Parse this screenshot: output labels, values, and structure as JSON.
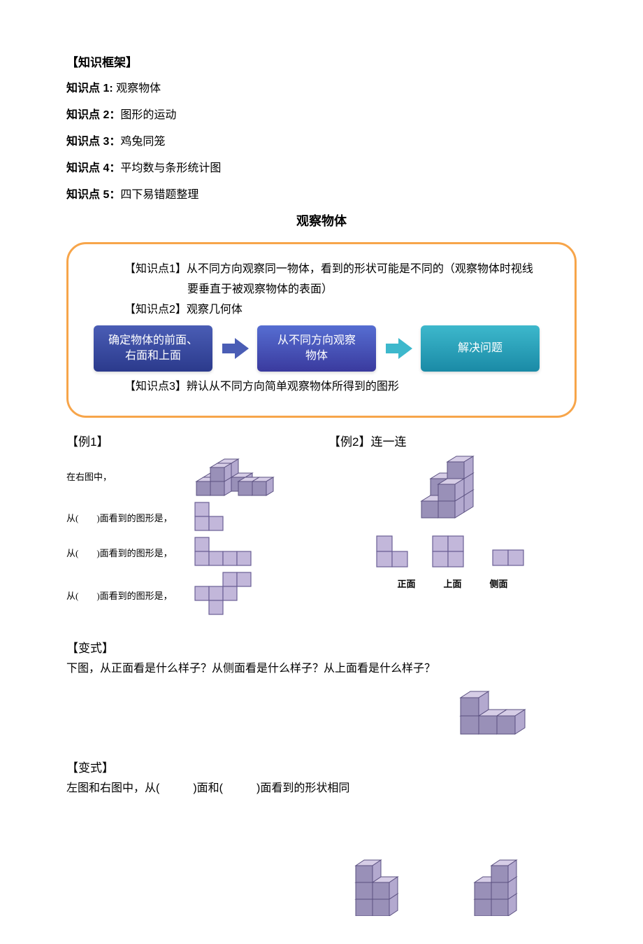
{
  "header": {
    "framework_title": "【知识框架】",
    "points": [
      {
        "num": "知识点 1:",
        "text": "观察物体"
      },
      {
        "num": "知识点 2：",
        "text": "图形的运动"
      },
      {
        "num": "知识点 3：",
        "text": "鸡兔同笼"
      },
      {
        "num": "知识点 4：",
        "text": "平均数与条形统计图"
      },
      {
        "num": "知识点 5：",
        "text": "四下易错题整理"
      }
    ],
    "center_title": "观察物体"
  },
  "orange_box": {
    "border_color": "#f7a54a",
    "lines": {
      "l1a": "【知识点1】从不同方向观察同一物体，看到的形状可能是不同的（观察物体时视线",
      "l1b": "要垂直于被观察物体的表面）",
      "l2": "【知识点2】观察几何体",
      "l3": "【知识点3】辨认从不同方向简单观察物体所得到的图形"
    },
    "flow": {
      "box1": "确定物体的前面、\n右面和上面",
      "box2": "从不同方向观察\n物体",
      "box3": "解决问题",
      "colors": {
        "b1": "#3546a0",
        "b2": "#4650b8",
        "b3": "#259fb9",
        "arrow1": "#4a5db5",
        "arrow2": "#3db8cc"
      }
    }
  },
  "examples": {
    "ex1": {
      "title": "【例1】",
      "intro": "在右图中，",
      "rows": [
        "从(　　)面看到的图形是，",
        "从(　　)面看到的图形是，",
        "从(　　)面看到的图形是，"
      ]
    },
    "ex2": {
      "title": "【例2】连一连",
      "labels": [
        "正面",
        "上面",
        "侧面"
      ]
    }
  },
  "variants": {
    "v1": {
      "title": "【变式】",
      "text": "下图，从正面看是什么样子？从侧面看是什么样子？从上面看是什么样子？"
    },
    "v2": {
      "title": "【变式】",
      "text": "左图和右图中，从(　　　)面和(　　　)面看到的形状相同"
    }
  },
  "cube_style": {
    "top": "#d6cde6",
    "left": "#9990b8",
    "right": "#b3a9cf",
    "stroke": "#5a5080",
    "flat_fill": "#c2b7da",
    "flat_stroke": "#6a5f95"
  }
}
